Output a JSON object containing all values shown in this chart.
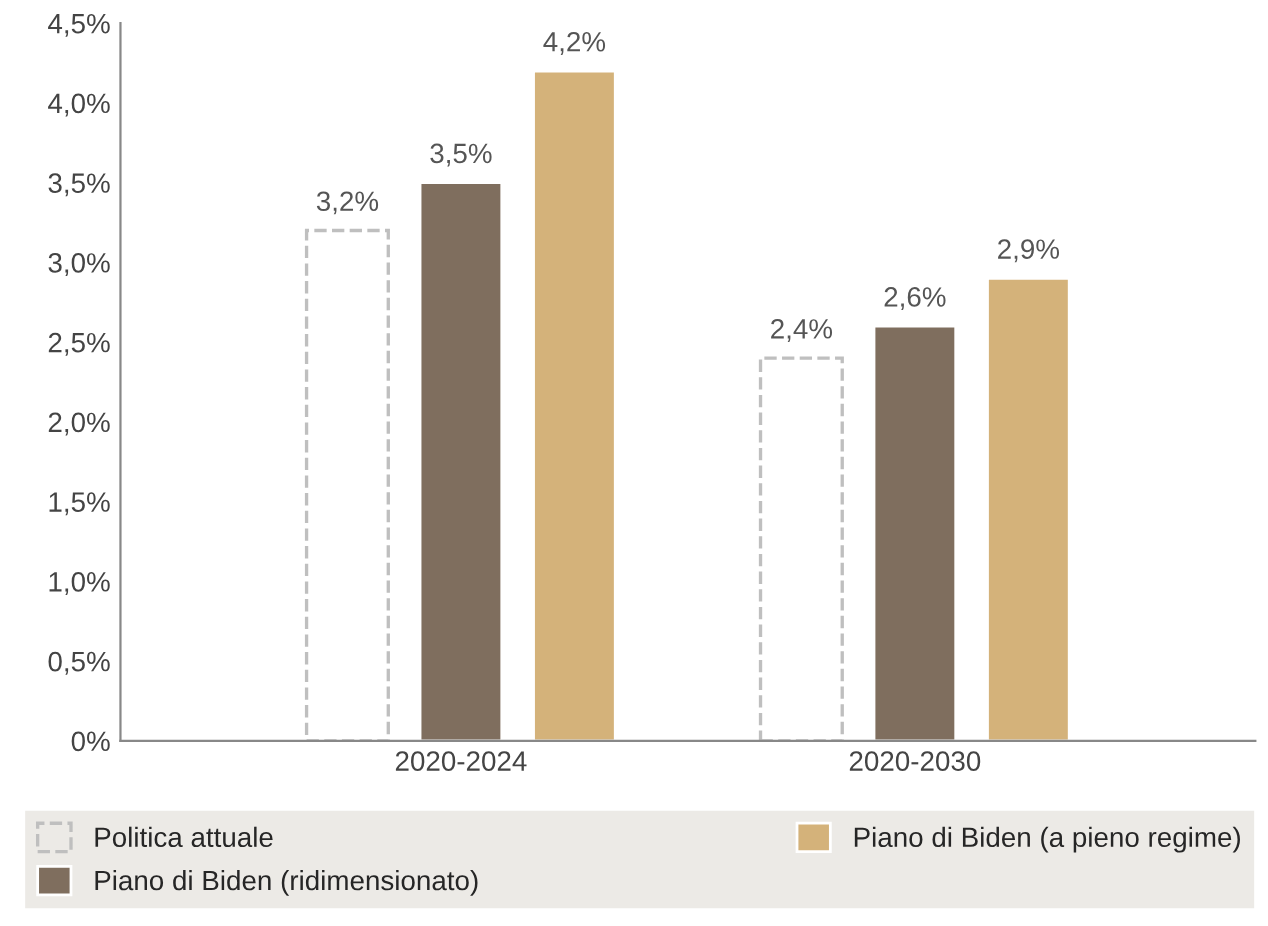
{
  "chart_data": {
    "type": "bar",
    "categories": [
      "2020-2024",
      "2020-2030"
    ],
    "series": [
      {
        "name": "Politica attuale",
        "color": "#bfbfbf",
        "line_style": "dashed",
        "values": [
          3.2,
          2.4
        ],
        "value_labels": [
          "3,2%",
          "2,4%"
        ]
      },
      {
        "name": "Piano di Biden (ridimensionato)",
        "color": "#7f6e5e",
        "values": [
          3.5,
          2.6
        ],
        "value_labels": [
          "3,5%",
          "2,6%"
        ]
      },
      {
        "name": "Piano di Biden (a pieno regime)",
        "color": "#d4b27a",
        "values": [
          4.2,
          2.9
        ],
        "value_labels": [
          "4,2%",
          "2,9%"
        ]
      }
    ],
    "ylim": [
      0,
      4.5
    ],
    "yticks": [
      {
        "value": 0,
        "label": "0%"
      },
      {
        "value": 0.5,
        "label": "0,5%"
      },
      {
        "value": 1,
        "label": "1,0%"
      },
      {
        "value": 1.5,
        "label": "1,5%"
      },
      {
        "value": 2,
        "label": "2,0%"
      },
      {
        "value": 2.5,
        "label": "2,5%"
      },
      {
        "value": 3,
        "label": "3,0%"
      },
      {
        "value": 3.5,
        "label": "3,5%"
      },
      {
        "value": 4,
        "label": "4,0%"
      },
      {
        "value": 4.5,
        "label": "4,5%"
      }
    ],
    "grid": false,
    "legend": "bottom"
  }
}
